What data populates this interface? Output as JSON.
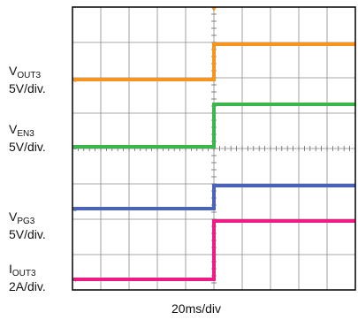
{
  "chart_data": {
    "type": "line",
    "title": "",
    "xlabel": "20ms/div",
    "ylabel": "",
    "grid": true,
    "x_divisions": 10,
    "y_divisions": 8,
    "x_range_div": [
      0,
      10
    ],
    "y_range_div": [
      0,
      8
    ],
    "x_unit": "div",
    "y_unit": "div",
    "series": [
      {
        "name": "VOUT3",
        "symbol": "V",
        "sub": "OUT3",
        "scale": "5V/div.",
        "marker": "1",
        "color": "#f7941d",
        "x": [
          0,
          5,
          5,
          10
        ],
        "y": [
          5.95,
          5.95,
          6.95,
          6.95
        ]
      },
      {
        "name": "VEN3",
        "symbol": "V",
        "sub": "EN3",
        "scale": "5V/div.",
        "marker": "2",
        "color": "#3db54a",
        "x": [
          0,
          5,
          5,
          10
        ],
        "y": [
          4.05,
          4.05,
          5.25,
          5.25
        ]
      },
      {
        "name": "VPG3",
        "symbol": "V",
        "sub": "PG3",
        "scale": "5V/div.",
        "marker": "3",
        "color": "#4a63b6",
        "x": [
          0,
          5,
          5,
          10
        ],
        "y": [
          2.3,
          2.3,
          2.95,
          2.95
        ]
      },
      {
        "name": "IOUT3",
        "symbol": "I",
        "sub": "OUT3",
        "scale": "2A/div.",
        "marker": "4",
        "color": "#ec1c84",
        "x": [
          0,
          5,
          5,
          10
        ],
        "y": [
          0.3,
          0.3,
          1.95,
          1.95
        ]
      }
    ]
  }
}
